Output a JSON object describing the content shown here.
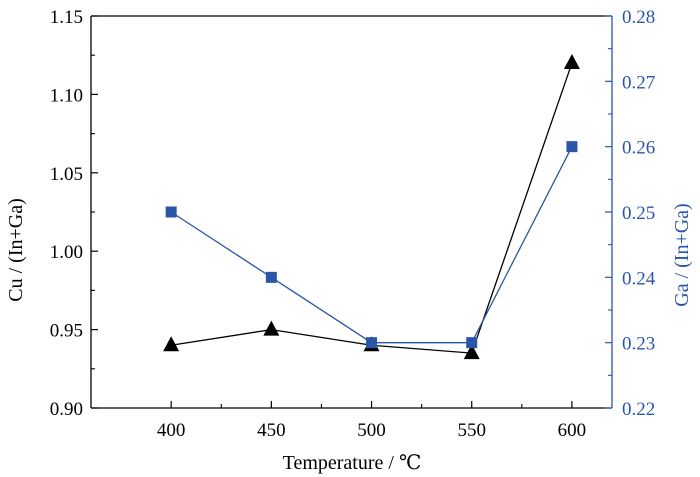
{
  "chart_data": {
    "type": "line",
    "xlabel": "Temperature / ℃",
    "ylabel": "Cu / (In+Ga)",
    "ylabel_right": "Ga / (In+Ga)",
    "xlim": [
      360,
      620
    ],
    "x_ticks": [
      400,
      450,
      500,
      550,
      600
    ],
    "x_tick_labels": [
      "400",
      "450",
      "500",
      "550",
      "600"
    ],
    "ylim": [
      0.9,
      1.15
    ],
    "y_ticks": [
      0.9,
      0.95,
      1.0,
      1.05,
      1.1,
      1.15
    ],
    "y_tick_labels": [
      "0.90",
      "0.95",
      "1.00",
      "1.05",
      "1.10",
      "1.15"
    ],
    "ylim_right": [
      0.22,
      0.28
    ],
    "y_right_ticks": [
      0.22,
      0.23,
      0.24,
      0.25,
      0.26,
      0.27,
      0.28
    ],
    "y_right_tick_labels": [
      "0.22",
      "0.23",
      "0.24",
      "0.25",
      "0.26",
      "0.27",
      "0.28"
    ],
    "grid": false,
    "x": [
      400,
      450,
      500,
      550,
      600
    ],
    "series": [
      {
        "axis": "left",
        "marker": "triangle",
        "color": "#000000",
        "values": [
          0.94,
          0.95,
          0.94,
          0.935,
          1.12
        ]
      },
      {
        "axis": "right",
        "marker": "square",
        "color": "#2a55a8",
        "values": [
          0.25,
          0.24,
          0.23,
          0.23,
          0.26
        ]
      }
    ],
    "right_axis_color": "#2a55a8"
  }
}
